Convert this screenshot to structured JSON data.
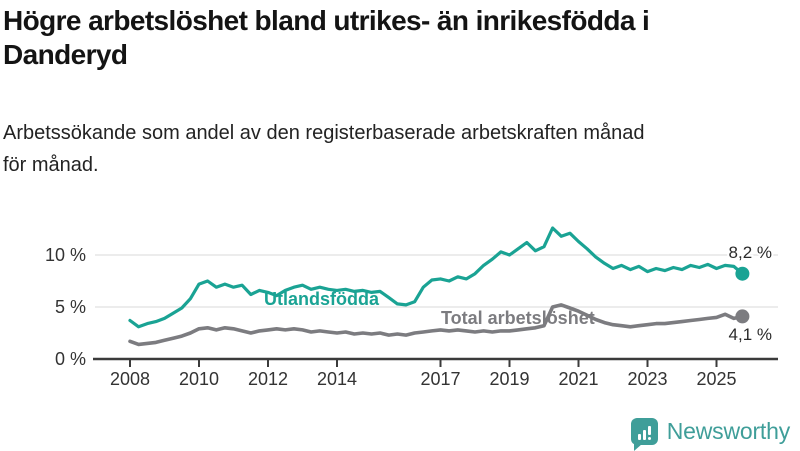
{
  "header": {
    "title": "Högre arbetslöshet bland utrikes- än inrikesfödda i Danderyd",
    "title_line1": "Högre arbetslöshet bland utrikes- än inrikesfödda i",
    "title_line2": "Danderyd",
    "subtitle": "Arbetssökande som andel av den registerbaserade arbetskraften månad för månad.",
    "subtitle_line1": "Arbetssökande som andel av den registerbaserade arbetskraften månad",
    "subtitle_line2": "för månad."
  },
  "footer": {
    "brand": "Newsworthy",
    "logo_icon": "bar-chart-speech-bubble-icon",
    "brand_color": "#3f9e99"
  },
  "colors": {
    "title": "#141414",
    "axis": "#3b3b3b",
    "gridline": "#d9d9d9",
    "series_foreign_born": "#1aa394",
    "series_total": "#7c7c80",
    "end_label": "#2b2b2b"
  },
  "chart_data": {
    "type": "line",
    "title": "Högre arbetslöshet bland utrikes- än inrikesfödda i Danderyd",
    "subtitle": "Arbetssökande som andel av den registerbaserade arbetskraften månad för månad.",
    "grid": "horizontal-only",
    "legend": "inline-labels",
    "xlim": [
      2008,
      2025.83
    ],
    "ylim": [
      0,
      13
    ],
    "x_ticks": [
      "2008",
      "2010",
      "2012",
      "2014",
      "2017",
      "2019",
      "2021",
      "2023",
      "2025"
    ],
    "y_ticks": [
      {
        "value": 0,
        "label": "0 %"
      },
      {
        "value": 5,
        "label": "5 %"
      },
      {
        "value": 10,
        "label": "10 %"
      }
    ],
    "series": [
      {
        "id": "utlandsfodda",
        "name": "Utlandsfödda",
        "color": "#1aa394",
        "end_label": "8,2 %",
        "end_value": 8.2,
        "x_start": 2008,
        "x_step": 0.25,
        "values": [
          3.7,
          3.1,
          3.4,
          3.6,
          3.9,
          4.4,
          4.9,
          5.8,
          7.2,
          7.5,
          6.9,
          7.2,
          6.9,
          7.1,
          6.2,
          6.6,
          6.4,
          6.1,
          6.6,
          6.9,
          7.1,
          6.7,
          6.9,
          6.7,
          6.6,
          6.7,
          6.5,
          6.6,
          6.4,
          6.5,
          5.9,
          5.3,
          5.2,
          5.5,
          6.9,
          7.6,
          7.7,
          7.5,
          7.9,
          7.7,
          8.2,
          9.0,
          9.6,
          10.3,
          10.0,
          10.6,
          11.2,
          10.4,
          10.8,
          12.6,
          11.8,
          12.1,
          11.3,
          10.6,
          9.8,
          9.2,
          8.7,
          9.0,
          8.6,
          8.9,
          8.4,
          8.7,
          8.5,
          8.8,
          8.6,
          9.0,
          8.8,
          9.1,
          8.7,
          9.0,
          8.9,
          8.2
        ]
      },
      {
        "id": "total-arbetsloshet",
        "name": "Total arbetslöshet",
        "color": "#7c7c80",
        "end_label": "4,1 %",
        "end_value": 4.1,
        "x_start": 2008,
        "x_step": 0.25,
        "values": [
          1.7,
          1.4,
          1.5,
          1.6,
          1.8,
          2.0,
          2.2,
          2.5,
          2.9,
          3.0,
          2.8,
          3.0,
          2.9,
          2.7,
          2.5,
          2.7,
          2.8,
          2.9,
          2.8,
          2.9,
          2.8,
          2.6,
          2.7,
          2.6,
          2.5,
          2.6,
          2.4,
          2.5,
          2.4,
          2.5,
          2.3,
          2.4,
          2.3,
          2.5,
          2.6,
          2.7,
          2.8,
          2.7,
          2.8,
          2.7,
          2.6,
          2.7,
          2.6,
          2.7,
          2.7,
          2.8,
          2.9,
          3.0,
          3.2,
          5.0,
          5.2,
          4.9,
          4.6,
          4.2,
          3.8,
          3.5,
          3.3,
          3.2,
          3.1,
          3.2,
          3.3,
          3.4,
          3.4,
          3.5,
          3.6,
          3.7,
          3.8,
          3.9,
          4.0,
          4.3,
          3.9,
          4.1
        ]
      }
    ]
  }
}
